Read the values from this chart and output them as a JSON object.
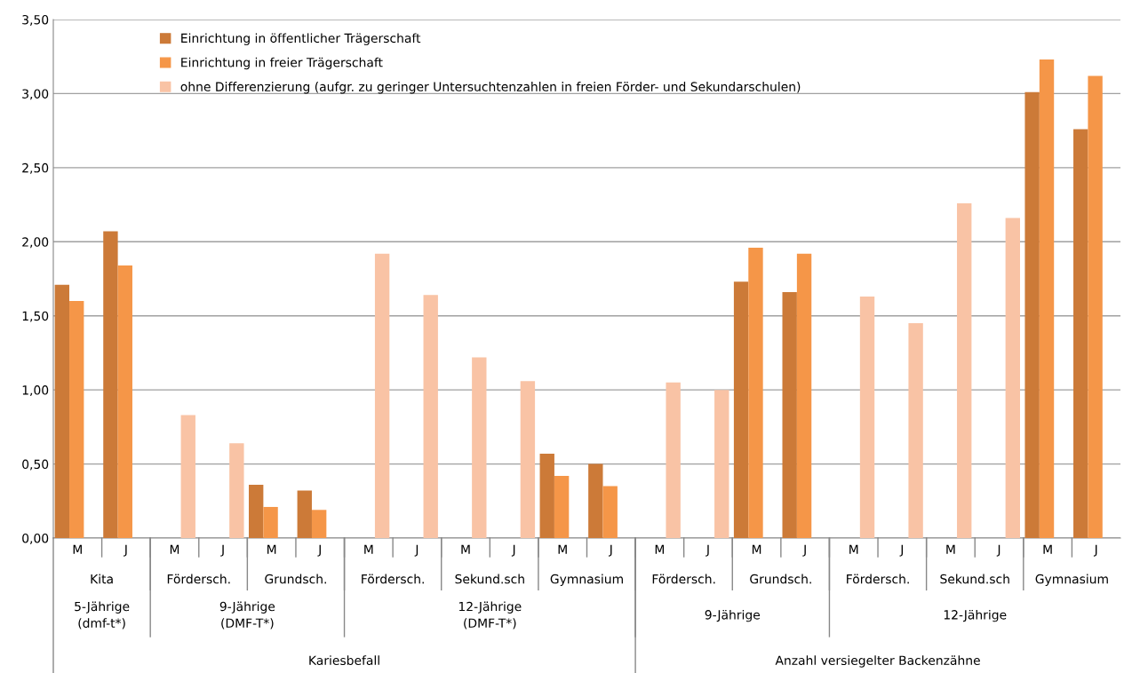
{
  "chart_data": {
    "type": "bar",
    "categories": [
      "M",
      "J",
      "M",
      "J",
      "M",
      "J",
      "M",
      "J",
      "M",
      "J",
      "M",
      "J",
      "M",
      "J",
      "M",
      "J",
      "M",
      "J",
      "M",
      "J",
      "M",
      "J"
    ],
    "series": [
      {
        "name": "Einrichtung in öffentlicher Trägerschaft",
        "color": "#cc7a38",
        "values": [
          1.71,
          2.07,
          null,
          null,
          0.36,
          0.32,
          null,
          null,
          null,
          null,
          0.57,
          0.5,
          null,
          null,
          1.73,
          1.66,
          null,
          null,
          null,
          null,
          3.01,
          2.76
        ]
      },
      {
        "name": "Einrichtung in freier Trägerschaft",
        "color": "#f59648",
        "values": [
          1.6,
          1.84,
          null,
          null,
          0.21,
          0.19,
          null,
          null,
          null,
          null,
          0.42,
          0.35,
          null,
          null,
          1.96,
          1.92,
          null,
          null,
          null,
          null,
          3.23,
          3.12
        ]
      },
      {
        "name": "ohne Differenzierung (aufgr. zu geringer Untersuchtenzahlen in freien Förder- und Sekundarschulen)",
        "color": "#f9c3a5",
        "values": [
          null,
          null,
          0.83,
          0.64,
          null,
          null,
          1.92,
          1.64,
          1.22,
          1.06,
          null,
          null,
          1.05,
          1.0,
          null,
          null,
          1.63,
          1.45,
          2.26,
          2.16,
          null,
          null
        ]
      }
    ],
    "ylim": [
      0,
      3.5
    ],
    "yticks": [
      {
        "value": 0,
        "label": "0,00"
      },
      {
        "value": 0.5,
        "label": "0,50"
      },
      {
        "value": 1,
        "label": "1,00"
      },
      {
        "value": 1.5,
        "label": "1,50"
      },
      {
        "value": 2,
        "label": "2,00"
      },
      {
        "value": 2.5,
        "label": "2,50"
      },
      {
        "value": 3,
        "label": "3,00"
      },
      {
        "value": 3.5,
        "label": "3,50"
      }
    ],
    "grid": "y",
    "legend": "top left",
    "annotations": [
      "Kita",
      "Fördersch.",
      "Grundsch.",
      "Fördersch.",
      "Sekund.sch",
      "Gymnasium",
      "Fördersch.",
      "Grundsch.",
      "Fördersch.",
      "Sekund.sch",
      "Gymnasium",
      "5-Jährige\n(dmf-t*)",
      "9-Jährige\n(DMF-T*)",
      "12-Jährige\n(DMF-T*)",
      "9-Jährige",
      "12-Jährige",
      "Kariesbefall",
      "Anzahl versiegelter Backenzähne"
    ]
  }
}
